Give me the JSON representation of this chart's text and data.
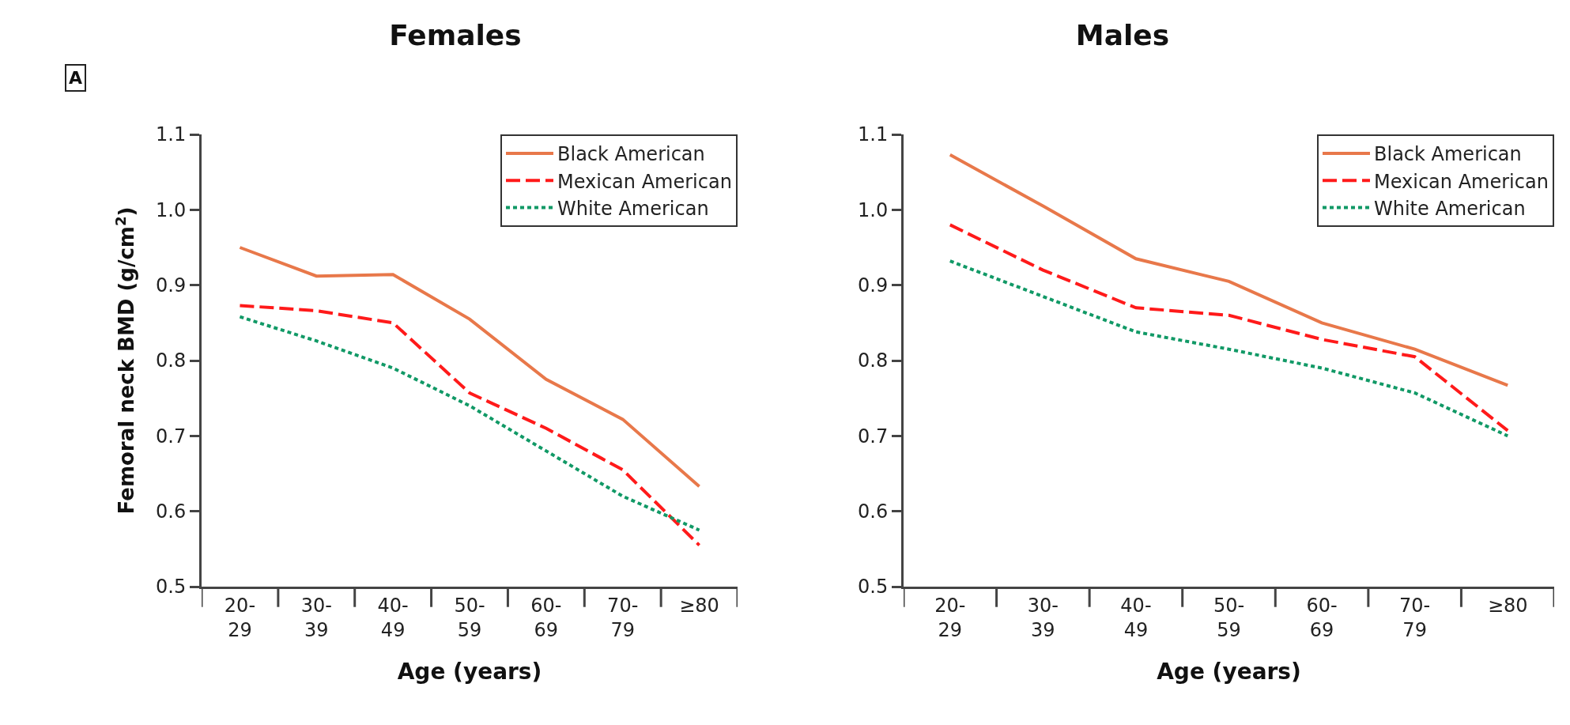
{
  "chart_data": [
    {
      "type": "line",
      "title": "Females",
      "xlabel": "Age (years)",
      "ylabel": "Femoral neck BMD (g/cm$^{2}$)",
      "annotations": [
        "A"
      ],
      "categories": [
        "20-29",
        "30-39",
        "40-49",
        "50-59",
        "60-69",
        "70-79",
        "≥80"
      ],
      "ylim": [
        0.5,
        1.1
      ],
      "yticks": [
        0.5,
        0.6,
        0.7,
        0.8,
        0.9,
        {
          "value": 1.0,
          "label": "1.0"
        },
        1.1
      ],
      "legend": "top right",
      "series": [
        {
          "name": "Black American",
          "color": "#e8784a",
          "line_style": "solid",
          "values": [
            0.95,
            0.912,
            0.914,
            0.855,
            0.775,
            0.722,
            0.633
          ]
        },
        {
          "name": "Mexican American",
          "color": "#ff1a1a",
          "line_style": "dashed",
          "values": [
            0.873,
            0.866,
            0.85,
            0.757,
            0.71,
            0.655,
            0.555
          ]
        },
        {
          "name": "White American",
          "color": "#119966",
          "line_style": "dotted",
          "values": [
            0.858,
            0.826,
            0.79,
            0.74,
            0.68,
            0.62,
            0.575
          ]
        }
      ]
    },
    {
      "type": "line",
      "title": "Males",
      "xlabel": "Age (years)",
      "categories": [
        "20-29",
        "30-39",
        "40-49",
        "50-59",
        "60-69",
        "70-79",
        "≥80"
      ],
      "ylim": [
        0.5,
        1.1
      ],
      "yticks": [
        0.5,
        0.6,
        0.7,
        0.8,
        0.9,
        {
          "value": 1.0,
          "label": "1.0"
        },
        1.1
      ],
      "legend": "top right",
      "series": [
        {
          "name": "Black American",
          "color": "#e8784a",
          "line_style": "solid",
          "values": [
            1.073,
            1.005,
            0.935,
            0.905,
            0.85,
            0.815,
            0.767
          ]
        },
        {
          "name": "Mexican American",
          "color": "#ff1a1a",
          "line_style": "dashed",
          "values": [
            0.98,
            0.92,
            0.87,
            0.86,
            0.828,
            0.805,
            0.707
          ]
        },
        {
          "name": "White American",
          "color": "#119966",
          "line_style": "dotted",
          "values": [
            0.932,
            0.885,
            0.838,
            0.815,
            0.79,
            0.757,
            0.7
          ]
        }
      ]
    }
  ]
}
